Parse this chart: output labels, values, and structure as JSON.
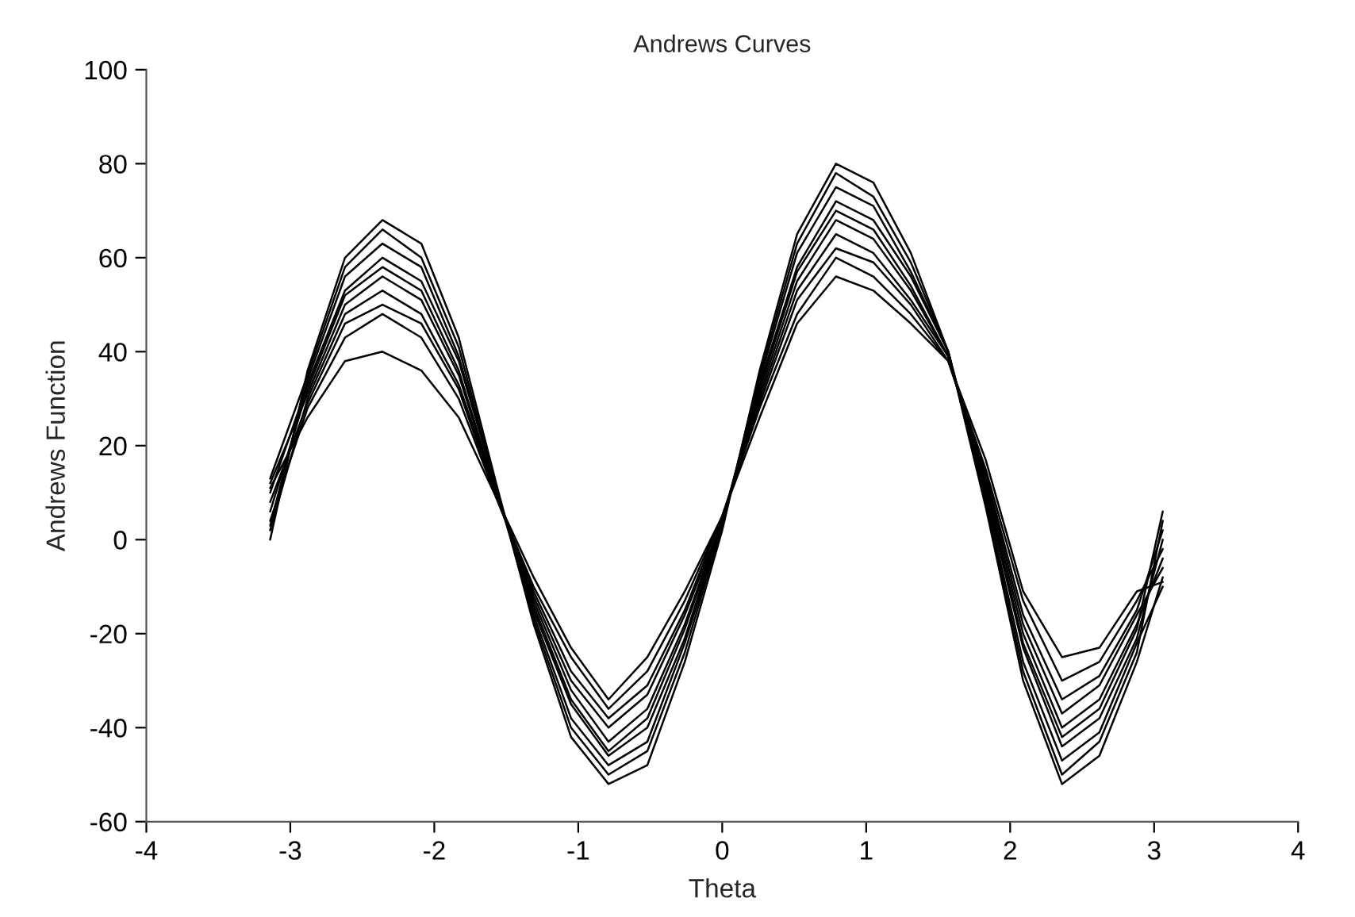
{
  "chart_data": {
    "type": "line",
    "title": "Andrews Curves",
    "xlabel": "Theta",
    "ylabel": "Andrews Function",
    "x": [
      -3.14,
      -2.88,
      -2.62,
      -2.36,
      -2.09,
      -1.83,
      -1.57,
      -1.31,
      -1.05,
      -0.79,
      -0.52,
      -0.26,
      0,
      0.26,
      0.52,
      0.79,
      1.05,
      1.31,
      1.57,
      1.83,
      2.09,
      2.36,
      2.62,
      2.88,
      3.06
    ],
    "series": [
      {
        "color": "#000000",
        "values": [
          0,
          36,
          60,
          68,
          63,
          43,
          12,
          -18,
          -42,
          -52,
          -48,
          -26,
          2,
          36,
          65,
          80,
          76,
          61,
          40,
          7,
          -30,
          -52,
          -46,
          -26,
          -8
        ]
      },
      {
        "color": "#000000",
        "values": [
          13,
          35,
          58,
          66,
          60,
          41,
          11,
          -17,
          -40,
          -50,
          -45,
          -24,
          3,
          35,
          63,
          78,
          73,
          59,
          40,
          8,
          -28,
          -50,
          -43,
          -24,
          4
        ]
      },
      {
        "color": "#000000",
        "values": [
          3,
          34,
          56,
          63,
          58,
          39,
          11,
          -16,
          -38,
          -48,
          -43,
          -22,
          3,
          34,
          61,
          75,
          71,
          57,
          40,
          9,
          -26,
          -47,
          -41,
          -22,
          -10
        ]
      },
      {
        "color": "#000000",
        "values": [
          10,
          33,
          53,
          60,
          55,
          38,
          11,
          -15,
          -35,
          -46,
          -40,
          -21,
          4,
          33,
          58,
          72,
          68,
          56,
          40,
          10,
          -23,
          -44,
          -38,
          -21,
          0
        ]
      },
      {
        "color": "#000000",
        "values": [
          6,
          32,
          52,
          58,
          53,
          36,
          10,
          -14,
          -34,
          -45,
          -38,
          -19,
          4,
          32,
          57,
          70,
          66,
          54,
          39,
          11,
          -22,
          -42,
          -36,
          -19,
          6
        ]
      },
      {
        "color": "#000000",
        "values": [
          12,
          31,
          50,
          56,
          51,
          35,
          10,
          -13,
          -32,
          -43,
          -36,
          -18,
          4,
          31,
          55,
          68,
          64,
          53,
          39,
          12,
          -20,
          -40,
          -34,
          -18,
          -4
        ]
      },
      {
        "color": "#000000",
        "values": [
          2,
          30,
          48,
          53,
          48,
          33,
          10,
          -12,
          -30,
          -40,
          -33,
          -16,
          4,
          30,
          53,
          65,
          61,
          51,
          39,
          13,
          -18,
          -37,
          -31,
          -16,
          -6
        ]
      },
      {
        "color": "#000000",
        "values": [
          8,
          29,
          46,
          50,
          46,
          32,
          9,
          -11,
          -28,
          -38,
          -31,
          -15,
          5,
          29,
          51,
          62,
          59,
          50,
          38,
          14,
          -16,
          -34,
          -29,
          -15,
          2
        ]
      },
      {
        "color": "#000000",
        "values": [
          4,
          28,
          43,
          48,
          43,
          30,
          9,
          -10,
          -25,
          -36,
          -28,
          -13,
          5,
          28,
          48,
          60,
          56,
          48,
          38,
          15,
          -13,
          -30,
          -26,
          -13,
          -2
        ]
      },
      {
        "color": "#000000",
        "values": [
          11,
          26,
          38,
          40,
          36,
          26,
          9,
          -8,
          -23,
          -34,
          -25,
          -11,
          5,
          26,
          46,
          56,
          53,
          46,
          38,
          17,
          -11,
          -25,
          -23,
          -11,
          -9
        ]
      }
    ],
    "xlim": [
      -4,
      4
    ],
    "xticks": [
      -4,
      -3,
      -2,
      -1,
      0,
      1,
      2,
      3,
      4
    ],
    "ylim": [
      -60,
      100
    ],
    "yticks": [
      -60,
      -40,
      -20,
      0,
      20,
      40,
      60,
      80,
      100
    ],
    "grid": false,
    "legend": false,
    "marker": "none",
    "line_style": "solid"
  }
}
